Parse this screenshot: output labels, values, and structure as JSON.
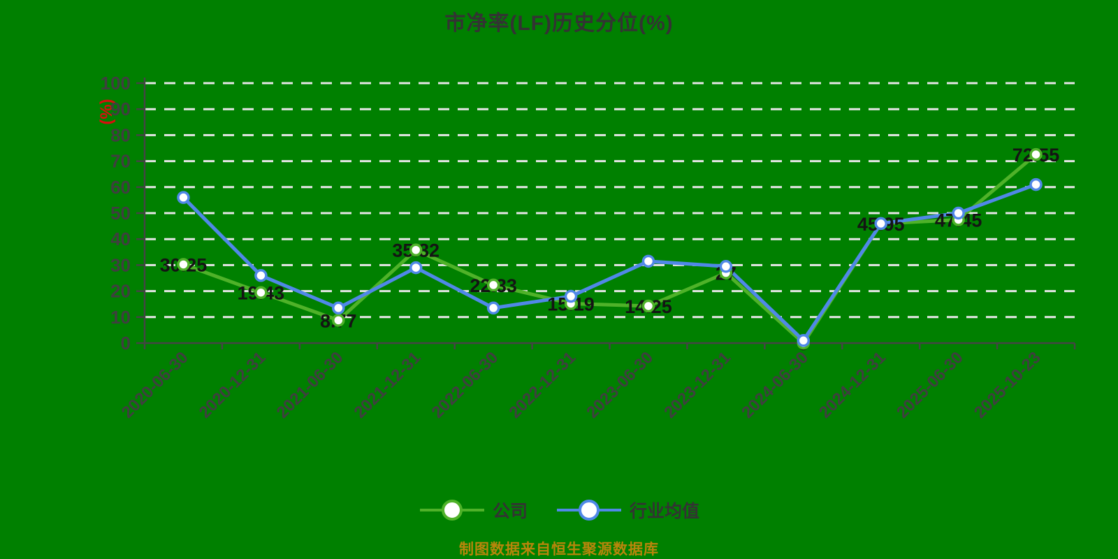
{
  "page": {
    "background": "#008000"
  },
  "chart": {
    "title": "市净率(LF)历史分位(%)",
    "title_color": "#333333",
    "ylabel": "(%)",
    "ylabel_color": "#D90E0E",
    "source_note": "制图数据来自恒生聚源数据库",
    "source_color": "#B8860B",
    "legend_text_color": "#333333"
  },
  "chart_data": {
    "type": "line",
    "title": "市净率(LF)历史分位(%)",
    "xlabel": "",
    "ylabel": "(%)",
    "ylim": [
      0,
      100
    ],
    "y_ticks": [
      0,
      10,
      20,
      30,
      40,
      50,
      60,
      70,
      80,
      90,
      100
    ],
    "grid": "horizontal-dashed",
    "legend_position": "bottom",
    "categories": [
      "2020-06-30",
      "2020-12-31",
      "2021-06-30",
      "2021-12-31",
      "2022-06-30",
      "2022-12-31",
      "2023-06-30",
      "2023-12-31",
      "2024-06-30",
      "2024-12-31",
      "2025-06-30",
      "2025-10-23"
    ],
    "series": [
      {
        "name": "公司",
        "color": "#4FB229",
        "show_labels": true,
        "values": [
          30.25,
          19.43,
          8.77,
          35.82,
          22.33,
          15.19,
          14.25,
          27,
          0,
          45.95,
          47.45,
          72.55
        ]
      },
      {
        "name": "行业均值",
        "color": "#5088E8",
        "show_labels": false,
        "values": [
          56,
          26,
          13.5,
          29,
          13.5,
          18,
          31.5,
          29.5,
          1,
          46,
          50,
          61
        ]
      }
    ],
    "colors": {
      "grid": "#E6E6E6",
      "axis": "#444444",
      "tick_text": "#3F3F3F",
      "label_text": "#141414",
      "marker_fill": "#FFFFFF"
    }
  }
}
